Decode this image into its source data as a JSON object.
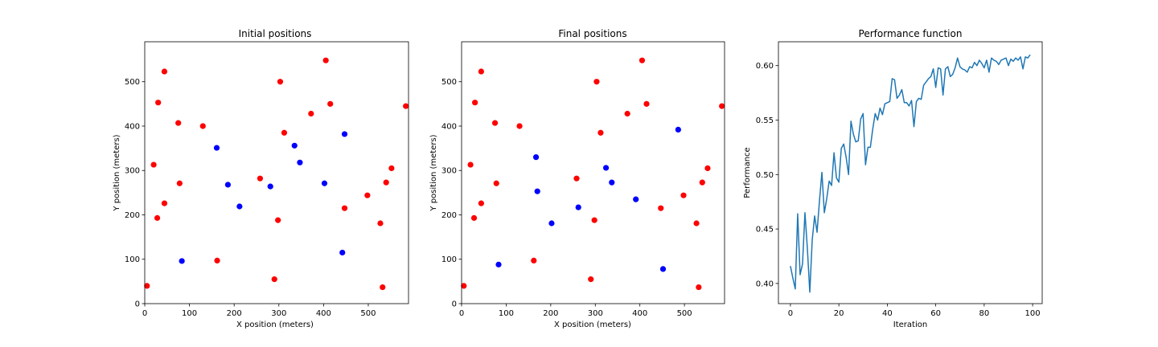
{
  "chart_data": [
    {
      "type": "scatter",
      "title": "Initial positions",
      "xlabel": "X position (meters)",
      "ylabel": "Y position (meters)",
      "xlim": [
        0,
        590
      ],
      "ylim": [
        0,
        590
      ],
      "xticks": [
        0,
        100,
        200,
        300,
        400,
        500
      ],
      "yticks": [
        0,
        100,
        200,
        300,
        400,
        500
      ],
      "series": [
        {
          "color": "#ff0000",
          "points": [
            [
              5,
              40
            ],
            [
              20,
              313
            ],
            [
              28,
              193
            ],
            [
              30,
              453
            ],
            [
              44,
              523
            ],
            [
              44,
              226
            ],
            [
              75,
              407
            ],
            [
              78,
              271
            ],
            [
              130,
              400
            ],
            [
              162,
              97
            ],
            [
              258,
              282
            ],
            [
              290,
              55
            ],
            [
              298,
              188
            ],
            [
              303,
              500
            ],
            [
              312,
              385
            ],
            [
              372,
              428
            ],
            [
              405,
              548
            ],
            [
              415,
              450
            ],
            [
              447,
              215
            ],
            [
              498,
              244
            ],
            [
              527,
              181
            ],
            [
              532,
              37
            ],
            [
              540,
              273
            ],
            [
              552,
              305
            ],
            [
              584,
              445
            ]
          ]
        },
        {
          "color": "#0000ff",
          "points": [
            [
              83,
              96
            ],
            [
              161,
              351
            ],
            [
              186,
              268
            ],
            [
              212,
              219
            ],
            [
              281,
              264
            ],
            [
              335,
              356
            ],
            [
              347,
              318
            ],
            [
              402,
              271
            ],
            [
              442,
              115
            ],
            [
              447,
              382
            ]
          ]
        }
      ]
    },
    {
      "type": "scatter",
      "title": "Final positions",
      "xlabel": "X position (meters)",
      "ylabel": "Y position (meters)",
      "xlim": [
        0,
        590
      ],
      "ylim": [
        0,
        590
      ],
      "xticks": [
        0,
        100,
        200,
        300,
        400,
        500
      ],
      "yticks": [
        0,
        100,
        200,
        300,
        400,
        500
      ],
      "series": [
        {
          "color": "#ff0000",
          "points": [
            [
              5,
              40
            ],
            [
              20,
              313
            ],
            [
              28,
              193
            ],
            [
              30,
              453
            ],
            [
              44,
              523
            ],
            [
              44,
              226
            ],
            [
              75,
              407
            ],
            [
              78,
              271
            ],
            [
              130,
              400
            ],
            [
              162,
              97
            ],
            [
              258,
              282
            ],
            [
              290,
              55
            ],
            [
              298,
              188
            ],
            [
              303,
              500
            ],
            [
              312,
              385
            ],
            [
              372,
              428
            ],
            [
              405,
              548
            ],
            [
              415,
              450
            ],
            [
              447,
              215
            ],
            [
              498,
              244
            ],
            [
              527,
              181
            ],
            [
              532,
              37
            ],
            [
              540,
              273
            ],
            [
              552,
              305
            ],
            [
              584,
              445
            ]
          ]
        },
        {
          "color": "#0000ff",
          "points": [
            [
              83,
              88
            ],
            [
              167,
              330
            ],
            [
              170,
              253
            ],
            [
              202,
              181
            ],
            [
              262,
              217
            ],
            [
              324,
              306
            ],
            [
              337,
              273
            ],
            [
              391,
              235
            ],
            [
              452,
              78
            ],
            [
              486,
              392
            ]
          ]
        }
      ]
    },
    {
      "type": "line",
      "title": "Performance function",
      "xlabel": "Iteration",
      "ylabel": "Performance",
      "xlim": [
        -4.95,
        103.95
      ],
      "ylim": [
        0.3815,
        0.6219
      ],
      "xticks": [
        0,
        20,
        40,
        60,
        80,
        100
      ],
      "yticks": [
        0.4,
        0.45,
        0.5,
        0.55,
        0.6
      ],
      "ytick_labels": [
        "0.40",
        "0.45",
        "0.50",
        "0.55",
        "0.60"
      ],
      "color": "#1f77b4",
      "x": [
        0,
        1,
        2,
        3,
        4,
        5,
        6,
        7,
        8,
        9,
        10,
        11,
        12,
        13,
        14,
        15,
        16,
        17,
        18,
        19,
        20,
        21,
        22,
        23,
        24,
        25,
        26,
        27,
        28,
        29,
        30,
        31,
        32,
        33,
        34,
        35,
        36,
        37,
        38,
        39,
        40,
        41,
        42,
        43,
        44,
        45,
        46,
        47,
        48,
        49,
        50,
        51,
        52,
        53,
        54,
        55,
        56,
        57,
        58,
        59,
        60,
        61,
        62,
        63,
        64,
        65,
        66,
        67,
        68,
        69,
        70,
        71,
        72,
        73,
        74,
        75,
        76,
        77,
        78,
        79,
        80,
        81,
        82,
        83,
        84,
        85,
        86,
        87,
        88,
        89,
        90,
        91,
        92,
        93,
        94,
        95,
        96,
        97,
        98,
        99
      ],
      "y": [
        0.416,
        0.405,
        0.395,
        0.464,
        0.408,
        0.418,
        0.465,
        0.432,
        0.392,
        0.44,
        0.462,
        0.447,
        0.476,
        0.502,
        0.465,
        0.478,
        0.494,
        0.49,
        0.52,
        0.497,
        0.493,
        0.524,
        0.528,
        0.516,
        0.5,
        0.549,
        0.537,
        0.53,
        0.531,
        0.551,
        0.556,
        0.509,
        0.525,
        0.525,
        0.542,
        0.556,
        0.55,
        0.561,
        0.555,
        0.565,
        0.566,
        0.567,
        0.588,
        0.587,
        0.57,
        0.573,
        0.578,
        0.566,
        0.566,
        0.563,
        0.568,
        0.544,
        0.567,
        0.57,
        0.569,
        0.582,
        0.585,
        0.588,
        0.59,
        0.597,
        0.58,
        0.598,
        0.597,
        0.573,
        0.597,
        0.599,
        0.59,
        0.592,
        0.598,
        0.607,
        0.599,
        0.597,
        0.596,
        0.594,
        0.599,
        0.598,
        0.603,
        0.6,
        0.605,
        0.602,
        0.598,
        0.605,
        0.594,
        0.607,
        0.605,
        0.604,
        0.601,
        0.605,
        0.606,
        0.607,
        0.6,
        0.606,
        0.604,
        0.607,
        0.605,
        0.608,
        0.597,
        0.608,
        0.607,
        0.61
      ]
    }
  ]
}
